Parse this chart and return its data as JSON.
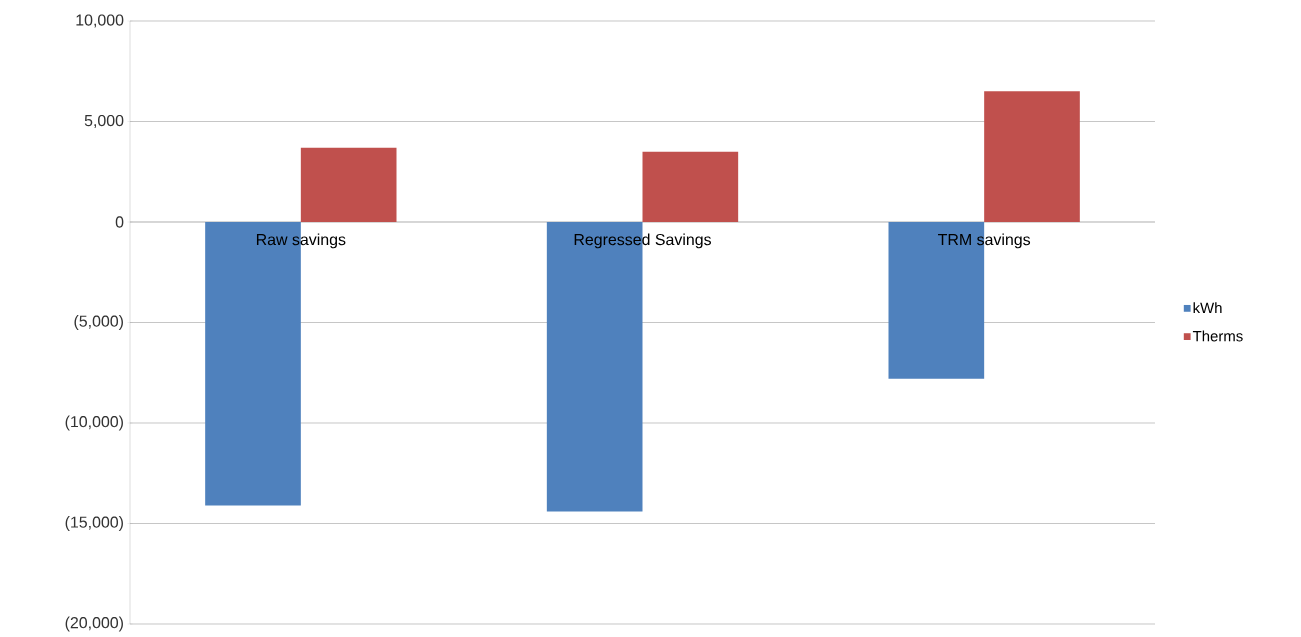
{
  "chart_data": {
    "type": "bar",
    "categories": [
      "Raw savings",
      "Regressed Savings",
      "TRM savings"
    ],
    "series": [
      {
        "name": "kWh",
        "color": "#4f81bd",
        "values": [
          -14100,
          -14400,
          -7800
        ]
      },
      {
        "name": "Therms",
        "color": "#c0504d",
        "values": [
          3700,
          3500,
          6500
        ]
      }
    ],
    "ylim": [
      -20000,
      10000
    ],
    "yticks": [
      {
        "value": -20000,
        "label": "(20,000)"
      },
      {
        "value": -15000,
        "label": "(15,000)"
      },
      {
        "value": -10000,
        "label": "(10,000)"
      },
      {
        "value": -5000,
        "label": "(5,000)"
      },
      0,
      {
        "value": 5000,
        "label": "5,000"
      },
      {
        "value": 10000,
        "label": "10,000"
      }
    ],
    "grid": "y",
    "legend": "right"
  }
}
